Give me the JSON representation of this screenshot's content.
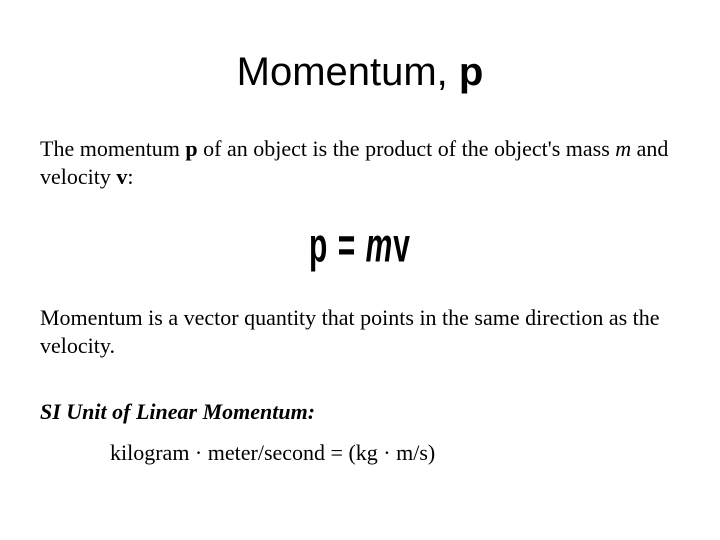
{
  "title": {
    "prefix": "Momentum, ",
    "symbol": "p"
  },
  "definition": {
    "part1": "The momentum ",
    "p": "p",
    "part2": " of an object is the product of the object's mass ",
    "m": "m",
    "part3": " and velocity ",
    "v": "v",
    "part4": ":"
  },
  "formula": {
    "p": "p",
    "eq": " = ",
    "m": "m",
    "v": "v"
  },
  "vector_note": "Momentum is a vector quantity that points in the same direction as the velocity.",
  "si": {
    "heading": "SI Unit of Linear Momentum:",
    "value": "kilogram · meter/second = (kg · m/s)"
  },
  "colors": {
    "background": "#ffffff",
    "text": "#000000"
  }
}
